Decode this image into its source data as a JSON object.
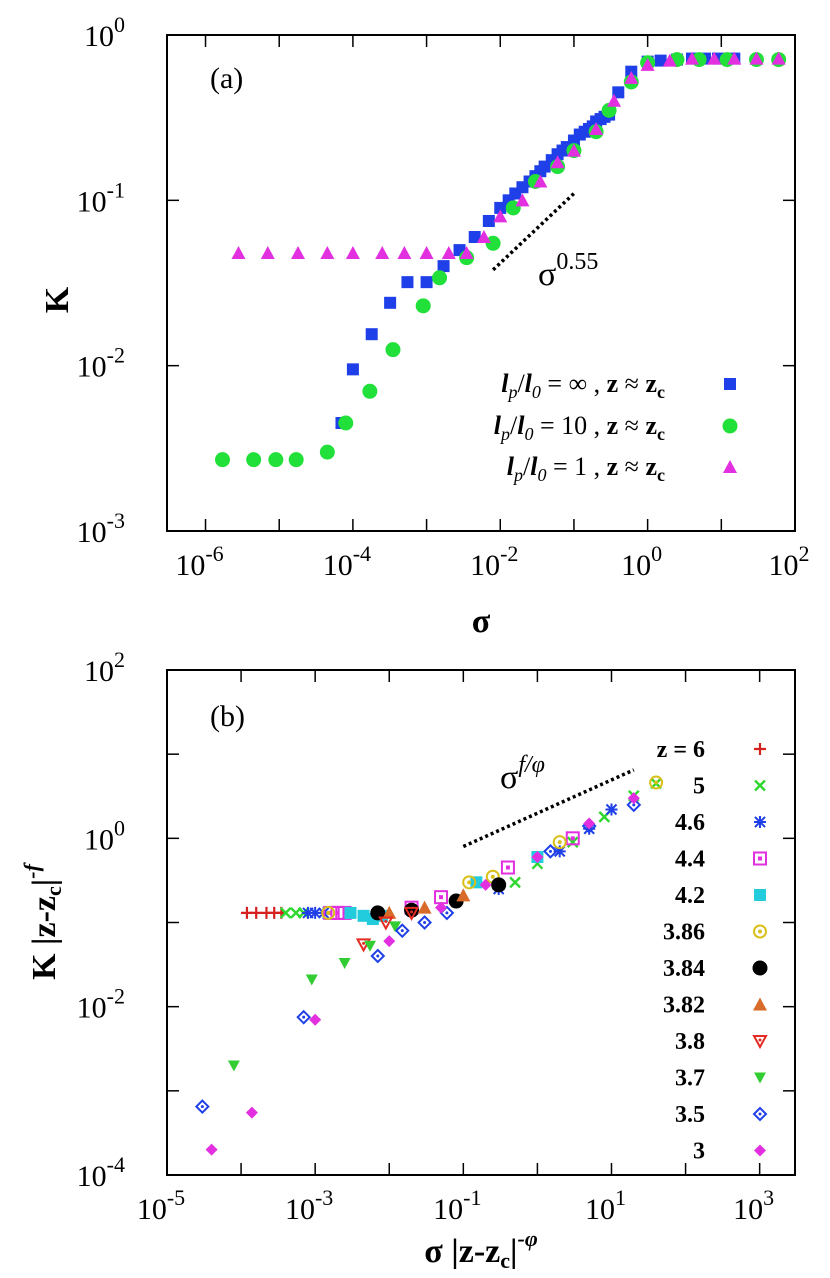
{
  "chart_data": [
    {
      "panel": "(a)",
      "type": "scatter",
      "xscale": "log",
      "yscale": "log",
      "xlim": [
        3e-07,
        100
      ],
      "ylim": [
        0.001,
        1
      ],
      "xlabel": "σ",
      "ylabel": "K",
      "xticks": [
        "10^-6",
        "10^-4",
        "10^-2",
        "10^0",
        "10^2"
      ],
      "yticks": [
        "10^-3",
        "10^-2",
        "10^-1",
        "10^0"
      ],
      "annotation": {
        "text": "σ",
        "exp": "0.55",
        "slope": 0.55,
        "line_x": [
          0.008,
          0.1
        ],
        "line_y": [
          0.038,
          0.11
        ]
      },
      "legend_position": "bottom-right",
      "series": [
        {
          "name": "lp/l0 = ∞ , z ≈ zc",
          "l_label": "l",
          "l_sub": "p",
          "slash": "/",
          "l0_label": "l",
          "l0_sub": "0",
          "eq": " = ",
          "value": "∞",
          "sep": " ,  ",
          "z": "z",
          "approx": " ≈ ",
          "zc": "z",
          "zc_sub": "c",
          "marker": "square",
          "color": "#1f3fe8",
          "x": [
            7e-05,
            0.0001,
            0.00018,
            0.00032,
            0.00055,
            0.001,
            0.0017,
            0.0028,
            0.0045,
            0.007,
            0.01,
            0.013,
            0.016,
            0.02,
            0.025,
            0.03,
            0.035,
            0.04,
            0.05,
            0.06,
            0.07,
            0.08,
            0.1,
            0.12,
            0.14,
            0.16,
            0.18,
            0.2,
            0.23,
            0.26,
            0.3,
            0.4,
            0.6,
            1,
            1.5,
            2.5,
            4,
            6,
            9,
            15
          ],
          "y": [
            0.0045,
            0.0095,
            0.0155,
            0.024,
            0.032,
            0.032,
            0.04,
            0.05,
            0.06,
            0.075,
            0.09,
            0.1,
            0.11,
            0.12,
            0.13,
            0.14,
            0.15,
            0.16,
            0.175,
            0.19,
            0.2,
            0.21,
            0.23,
            0.25,
            0.26,
            0.27,
            0.28,
            0.3,
            0.31,
            0.32,
            0.33,
            0.45,
            0.6,
            0.69,
            0.7,
            0.71,
            0.72,
            0.72,
            0.72,
            0.72
          ]
        },
        {
          "name": "lp/l0 = 10 , z ≈ zc",
          "l_label": "l",
          "l_sub": "p",
          "slash": "/",
          "l0_label": "l",
          "l0_sub": "0",
          "eq": " = ",
          "value": "10",
          "sep": " ,  ",
          "z": "z",
          "approx": " ≈ ",
          "zc": "z",
          "zc_sub": "c",
          "marker": "circle",
          "color": "#22e03a",
          "x": [
            1.7e-06,
            4.5e-06,
            9e-06,
            1.7e-05,
            4.5e-05,
            8e-05,
            0.00017,
            0.00035,
            0.0009,
            0.0015,
            0.0035,
            0.008,
            0.015,
            0.03,
            0.06,
            0.1,
            0.2,
            0.3,
            0.6,
            1,
            2.5,
            5,
            12,
            30,
            60
          ],
          "y": [
            0.0027,
            0.0027,
            0.0027,
            0.0027,
            0.003,
            0.0045,
            0.007,
            0.0125,
            0.023,
            0.034,
            0.045,
            0.055,
            0.09,
            0.13,
            0.16,
            0.2,
            0.26,
            0.35,
            0.52,
            0.68,
            0.71,
            0.71,
            0.71,
            0.71,
            0.71
          ]
        },
        {
          "name": "lp/l0 = 1 , z ≈ zc",
          "l_label": "l",
          "l_sub": "p",
          "slash": "/",
          "l0_label": "l",
          "l0_sub": "0",
          "eq": " = ",
          "value": "1",
          "sep": " ,  ",
          "z": "z",
          "approx": " ≈ ",
          "zc": "z",
          "zc_sub": "c",
          "marker": "triangle",
          "color": "#e22fe0",
          "x": [
            2.8e-06,
            7e-06,
            1.8e-05,
            4.5e-05,
            0.0001,
            0.00025,
            0.0005,
            0.001,
            0.002,
            0.0035,
            0.006,
            0.01,
            0.02,
            0.035,
            0.06,
            0.1,
            0.2,
            0.35,
            0.6,
            1,
            2,
            4,
            8,
            15,
            30,
            60
          ],
          "y": [
            0.048,
            0.048,
            0.048,
            0.048,
            0.048,
            0.048,
            0.048,
            0.048,
            0.048,
            0.048,
            0.06,
            0.08,
            0.1,
            0.13,
            0.17,
            0.2,
            0.27,
            0.4,
            0.55,
            0.66,
            0.7,
            0.72,
            0.72,
            0.72,
            0.72,
            0.72
          ]
        }
      ]
    },
    {
      "panel": "(b)",
      "type": "scatter",
      "xscale": "log",
      "yscale": "log",
      "xlim": [
        1e-05,
        3000
      ],
      "ylim": [
        0.0001,
        100
      ],
      "xlabel": "σ |z-zc|^-φ",
      "xlabel_main": "σ |z-z",
      "xlabel_sub": "c",
      "xlabel_end": "|",
      "xlabel_sup": "-φ",
      "ylabel": "K |z-zc|^-f",
      "ylabel_main": "K |z-z",
      "ylabel_sub": "c",
      "ylabel_end": "|",
      "ylabel_sup": "-f",
      "xticks": [
        "10^-5",
        "10^-3",
        "10^-1",
        "10^1",
        "10^3"
      ],
      "yticks": [
        "10^-4",
        "10^-2",
        "10^0",
        "10^2"
      ],
      "annotation": {
        "text": "σ",
        "exp": "f/φ",
        "line_x": [
          0.1,
          20
        ],
        "line_y": [
          0.8,
          6.5
        ]
      },
      "legend_position": "right",
      "legend_prefix": "z = ",
      "series": [
        {
          "name": "6",
          "marker": "plus",
          "color": "#d62020",
          "x": [
            0.00012,
            0.00016,
            0.00022,
            0.00028,
            0.00035
          ],
          "y": [
            0.13,
            0.13,
            0.13,
            0.13,
            0.13
          ]
        },
        {
          "name": "5",
          "marker": "cross",
          "color": "#2ed82e",
          "x": [
            0.0004,
            0.00055,
            0.0007,
            0.5,
            1,
            3,
            8,
            20,
            40
          ],
          "y": [
            0.13,
            0.13,
            0.13,
            0.3,
            0.5,
            0.9,
            1.8,
            3.2,
            4.5
          ]
        },
        {
          "name": "4.6",
          "marker": "star",
          "color": "#1f3fe8",
          "x": [
            0.0008,
            0.001,
            0.0013,
            0.3,
            2,
            5,
            10
          ],
          "y": [
            0.13,
            0.13,
            0.13,
            0.25,
            0.7,
            1.3,
            2.2
          ]
        },
        {
          "name": "4.4",
          "marker": "dsquare",
          "color": "#e22fe0",
          "x": [
            0.0016,
            0.002,
            0.0025,
            0.02,
            0.05,
            0.4,
            3
          ],
          "y": [
            0.13,
            0.13,
            0.13,
            0.15,
            0.2,
            0.45,
            1
          ]
        },
        {
          "name": "4.2",
          "marker": "square",
          "color": "#22ccdd",
          "x": [
            0.003,
            0.0045,
            0.006,
            0.008,
            0.15,
            1
          ],
          "y": [
            0.13,
            0.12,
            0.11,
            0.12,
            0.3,
            0.6
          ]
        },
        {
          "name": "3.86",
          "marker": "dcircle",
          "color": "#d8c018",
          "x": [
            0.0015,
            0.12,
            0.25,
            2,
            40
          ],
          "y": [
            0.13,
            0.3,
            0.35,
            0.9,
            4.6
          ]
        },
        {
          "name": "3.84",
          "marker": "circle",
          "color": "#000000",
          "x": [
            0.007,
            0.02,
            0.08,
            0.3
          ],
          "y": [
            0.13,
            0.14,
            0.18,
            0.28
          ]
        },
        {
          "name": "3.82",
          "marker": "triangle",
          "color": "#d86a2a",
          "x": [
            0.01,
            0.03,
            0.1
          ],
          "y": [
            0.13,
            0.15,
            0.21
          ]
        },
        {
          "name": "3.8",
          "marker": "dtriangle",
          "color": "#e42a22",
          "x": [
            0.0045,
            0.009,
            0.02
          ],
          "y": [
            0.055,
            0.1,
            0.13
          ]
        },
        {
          "name": "3.7",
          "marker": "dtriangle_filled",
          "color": "#33cc33",
          "x": [
            8e-05,
            0.0009,
            0.0025,
            0.0055,
            0.012
          ],
          "y": [
            0.002,
            0.021,
            0.033,
            0.053,
            0.09
          ]
        },
        {
          "name": "3.5",
          "marker": "ddiamond",
          "color": "#1f3fe8",
          "x": [
            3e-05,
            0.0007,
            0.007,
            0.015,
            0.03,
            0.06,
            1.5,
            5,
            20
          ],
          "y": [
            0.00065,
            0.0075,
            0.04,
            0.08,
            0.1,
            0.13,
            0.7,
            1.4,
            2.5
          ]
        },
        {
          "name": "3",
          "marker": "diamond",
          "color": "#e22fe0",
          "x": [
            4e-05,
            0.00014,
            0.001,
            0.01,
            0.05,
            0.2,
            1,
            5,
            20
          ],
          "y": [
            0.0002,
            0.00055,
            0.007,
            0.06,
            0.15,
            0.28,
            0.6,
            1.5,
            3
          ]
        }
      ]
    }
  ]
}
